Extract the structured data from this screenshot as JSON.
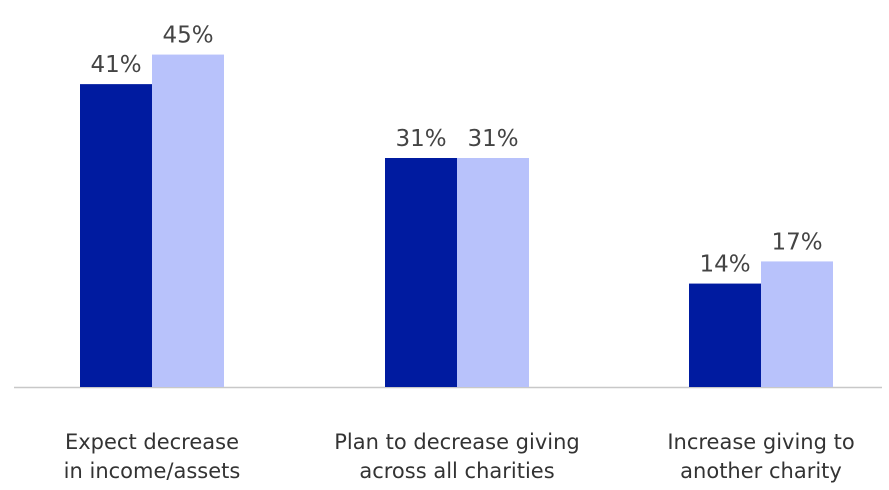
{
  "chart_data": {
    "type": "bar",
    "categories": [
      [
        "Expect decrease",
        "in income/assets"
      ],
      [
        "Plan to decrease giving",
        "across all charities"
      ],
      [
        "Increase giving to",
        "another charity"
      ]
    ],
    "series": [
      {
        "values": [
          41,
          31,
          14
        ],
        "color": "#001ba0",
        "labels": [
          "41%",
          "31%",
          "14%"
        ]
      },
      {
        "values": [
          45,
          31,
          17
        ],
        "color": "#b8c2fb",
        "labels": [
          "45%",
          "31%",
          "17%"
        ]
      }
    ],
    "title": "",
    "xlabel": "",
    "ylabel": "",
    "ylim": [
      0,
      50
    ],
    "grid": false,
    "legend": "none",
    "axis_color": "#c8c8c8"
  }
}
